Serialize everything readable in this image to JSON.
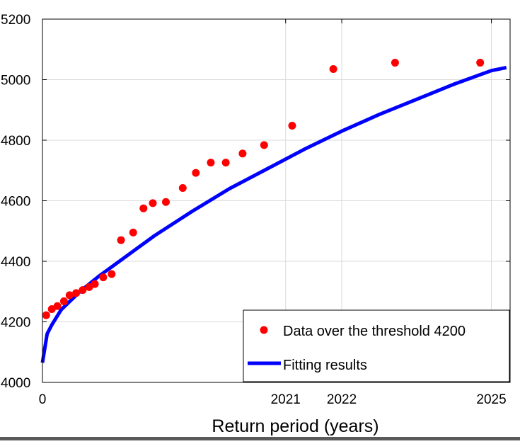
{
  "chart_data": {
    "type": "scatter",
    "title": "",
    "xlabel": "Return period (years)",
    "ylabel": "",
    "xlim": [
      0,
      2500
    ],
    "ylim": [
      4000,
      5200
    ],
    "grid": true,
    "legend_position": "bottom-right",
    "x_tick_values": [
      0,
      1300,
      1600,
      2400
    ],
    "x_tick_labels": [
      "0",
      "2021",
      "2022",
      "2025"
    ],
    "y_ticks": [
      4000,
      4200,
      4400,
      4600,
      4800,
      5000,
      5200
    ],
    "series": [
      {
        "name": "Data over the threshold 4200",
        "kind": "scatter",
        "color": "#ff0000",
        "x": [
          20,
          50,
          80,
          115,
          145,
          180,
          215,
          250,
          280,
          325,
          370,
          420,
          485,
          540,
          590,
          660,
          750,
          820,
          900,
          980,
          1070,
          1185,
          1335,
          1555,
          1885,
          2340
        ],
        "y": [
          4222,
          4242,
          4252,
          4268,
          4288,
          4295,
          4305,
          4315,
          4325,
          4347,
          4358,
          4470,
          4495,
          4575,
          4592,
          4596,
          4642,
          4692,
          4726,
          4726,
          4756,
          4784,
          4848,
          5035,
          5056,
          5056
        ]
      },
      {
        "name": "Fitting results",
        "kind": "line",
        "color": "#0000ff",
        "x": [
          0,
          25,
          50,
          100,
          200,
          300,
          400,
          500,
          600,
          800,
          1000,
          1200,
          1400,
          1600,
          1800,
          2000,
          2200,
          2400,
          2480
        ],
        "y": [
          4065,
          4160,
          4190,
          4240,
          4300,
          4350,
          4395,
          4440,
          4485,
          4565,
          4640,
          4705,
          4770,
          4830,
          4885,
          4935,
          4985,
          5030,
          5040
        ]
      }
    ]
  }
}
